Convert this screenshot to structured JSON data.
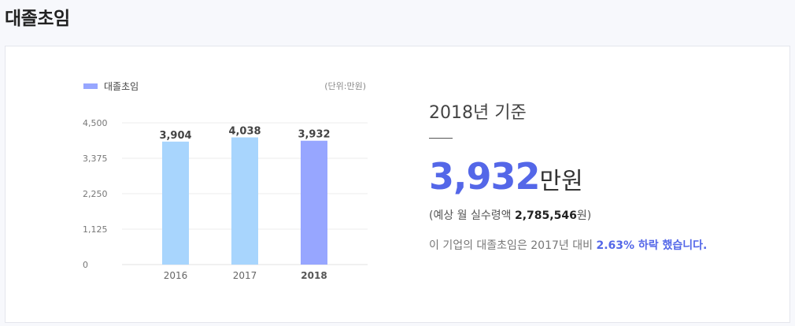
{
  "page": {
    "title": "대졸초임"
  },
  "legend": {
    "label": "대졸초임",
    "color": "#97a6ff"
  },
  "unit": "(단위:만원)",
  "chart_data": {
    "type": "bar",
    "categories": [
      "2016",
      "2017",
      "2018"
    ],
    "values": [
      3904,
      4038,
      3932
    ],
    "value_labels": [
      "3,904",
      "4,038",
      "3,932"
    ],
    "ylim": [
      0,
      4500
    ],
    "yticks": [
      0,
      1125,
      2250,
      3375,
      4500
    ],
    "ytick_labels": [
      "0",
      "1,125",
      "2,250",
      "3,375",
      "4,500"
    ],
    "colors": [
      "#a8d5fd",
      "#a8d5fd",
      "#97a6ff"
    ],
    "highlight_index": 2,
    "grid": true
  },
  "summary": {
    "basis": "2018년 기준",
    "value": "3,932",
    "value_unit": "만원",
    "monthly_prefix": "(예상 월 실수령액 ",
    "monthly_amount": "2,785,546",
    "monthly_suffix": "원)",
    "note_prefix": "이 기업의 대졸초임은 2017년 대비 ",
    "note_highlight": "2.63% 하락 했습니다."
  }
}
